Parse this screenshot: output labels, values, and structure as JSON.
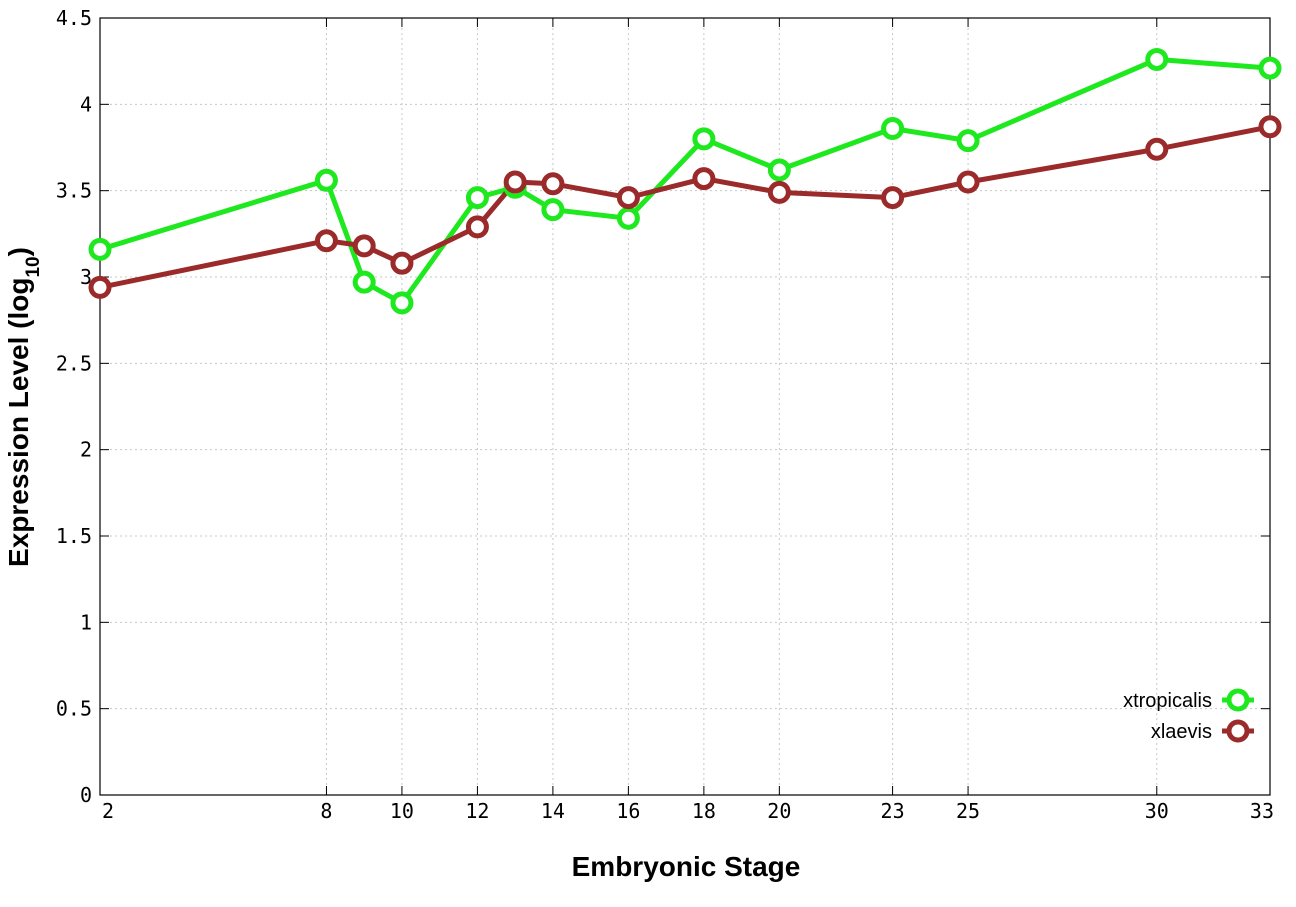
{
  "chart_data": {
    "type": "line",
    "xlabel": "Embryonic Stage",
    "ylabel_main": "Expression Level (log",
    "ylabel_sub": "10",
    "ylabel_close": ")",
    "ylim": [
      0,
      4.5
    ],
    "xlim": [
      2,
      33
    ],
    "x_ticks": [
      2,
      8,
      10,
      12,
      14,
      16,
      18,
      20,
      23,
      25,
      30,
      33
    ],
    "y_ticks": [
      "0",
      "0.5",
      "1",
      "1.5",
      "2",
      "2.5",
      "3",
      "3.5",
      "4",
      "4.5"
    ],
    "legend_position": "bottom-right",
    "grid": true,
    "series": [
      {
        "name": "xtropicalis",
        "color": "#1ee81e",
        "x": [
          2,
          8,
          9,
          10,
          12,
          13,
          14,
          16,
          18,
          20,
          23,
          25,
          30,
          33
        ],
        "values": [
          3.16,
          3.56,
          2.97,
          2.85,
          3.46,
          3.52,
          3.39,
          3.34,
          3.8,
          3.62,
          3.86,
          3.79,
          4.26,
          4.21
        ]
      },
      {
        "name": "xlaevis",
        "color": "#9b2a2a",
        "x": [
          2,
          8,
          9,
          10,
          12,
          13,
          14,
          16,
          18,
          20,
          23,
          25,
          30,
          33
        ],
        "values": [
          2.94,
          3.21,
          3.18,
          3.08,
          3.29,
          3.55,
          3.54,
          3.46,
          3.57,
          3.49,
          3.46,
          3.55,
          3.74,
          3.87
        ]
      }
    ]
  }
}
